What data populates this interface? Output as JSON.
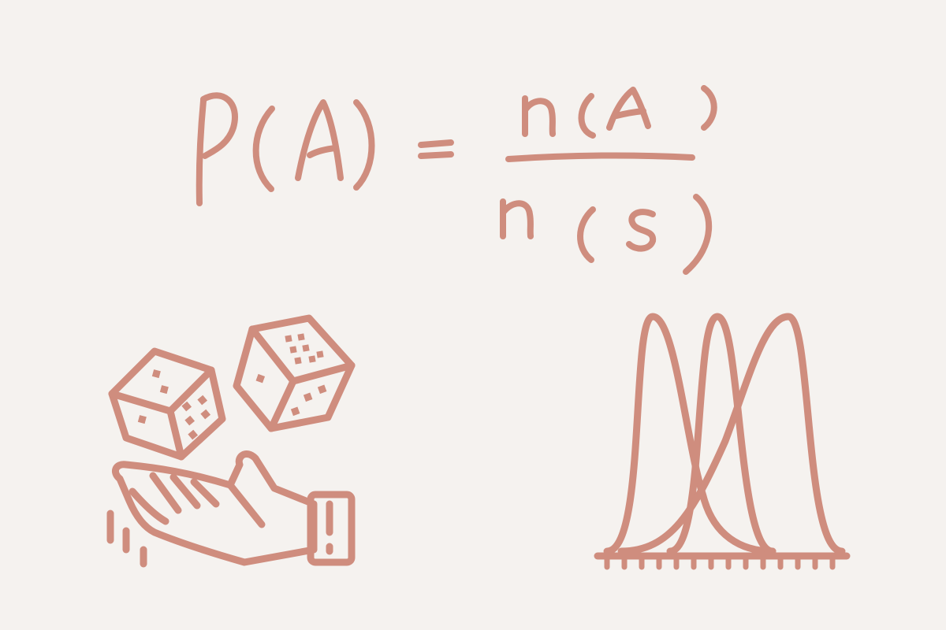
{
  "colors": {
    "background": "#f5f2ef",
    "ink": "#cf8d7e"
  },
  "formula": {
    "lhs_function": "P",
    "lhs_argument": "A",
    "equals": "=",
    "numerator_function": "n",
    "numerator_argument": "A",
    "denominator_function": "n",
    "denominator_argument": "S"
  },
  "icons": {
    "left": "hand-throwing-dice-icon",
    "right": "overlapping-bell-curves-icon"
  }
}
